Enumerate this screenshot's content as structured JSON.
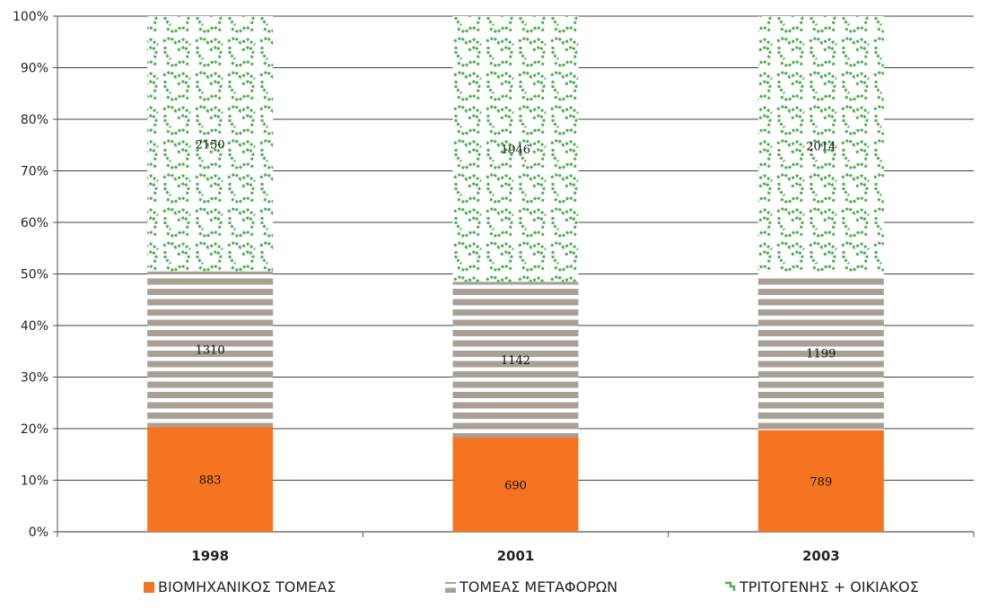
{
  "chart_data": {
    "type": "bar",
    "stacked": "percent",
    "categories": [
      "1998",
      "2001",
      "2003"
    ],
    "series": [
      {
        "name": "ΒΙΟΜΗΧΑΝΙΚΟΣ ΤΟΜΕΑΣ",
        "values": [
          883,
          690,
          789
        ],
        "color": "#F47422",
        "pattern": "solid"
      },
      {
        "name": "ΤΟΜΕΑΣ ΜΕΤΑΦΟΡΩΝ",
        "values": [
          1310,
          1142,
          1199
        ],
        "color": "#A8A096",
        "pattern": "horizontal-stripes"
      },
      {
        "name": "ΤΡΙΤΟΓΕΝΗΣ + ΟΙΚΙΑΚΟΣ",
        "values": [
          2150,
          1946,
          2014
        ],
        "color": "#4CAF50",
        "pattern": "green-wave-dots"
      }
    ],
    "y_ticks": [
      "0%",
      "10%",
      "20%",
      "30%",
      "40%",
      "50%",
      "60%",
      "70%",
      "80%",
      "90%",
      "100%"
    ],
    "ylim": [
      0,
      100
    ],
    "grid": true,
    "legend_position": "bottom"
  }
}
